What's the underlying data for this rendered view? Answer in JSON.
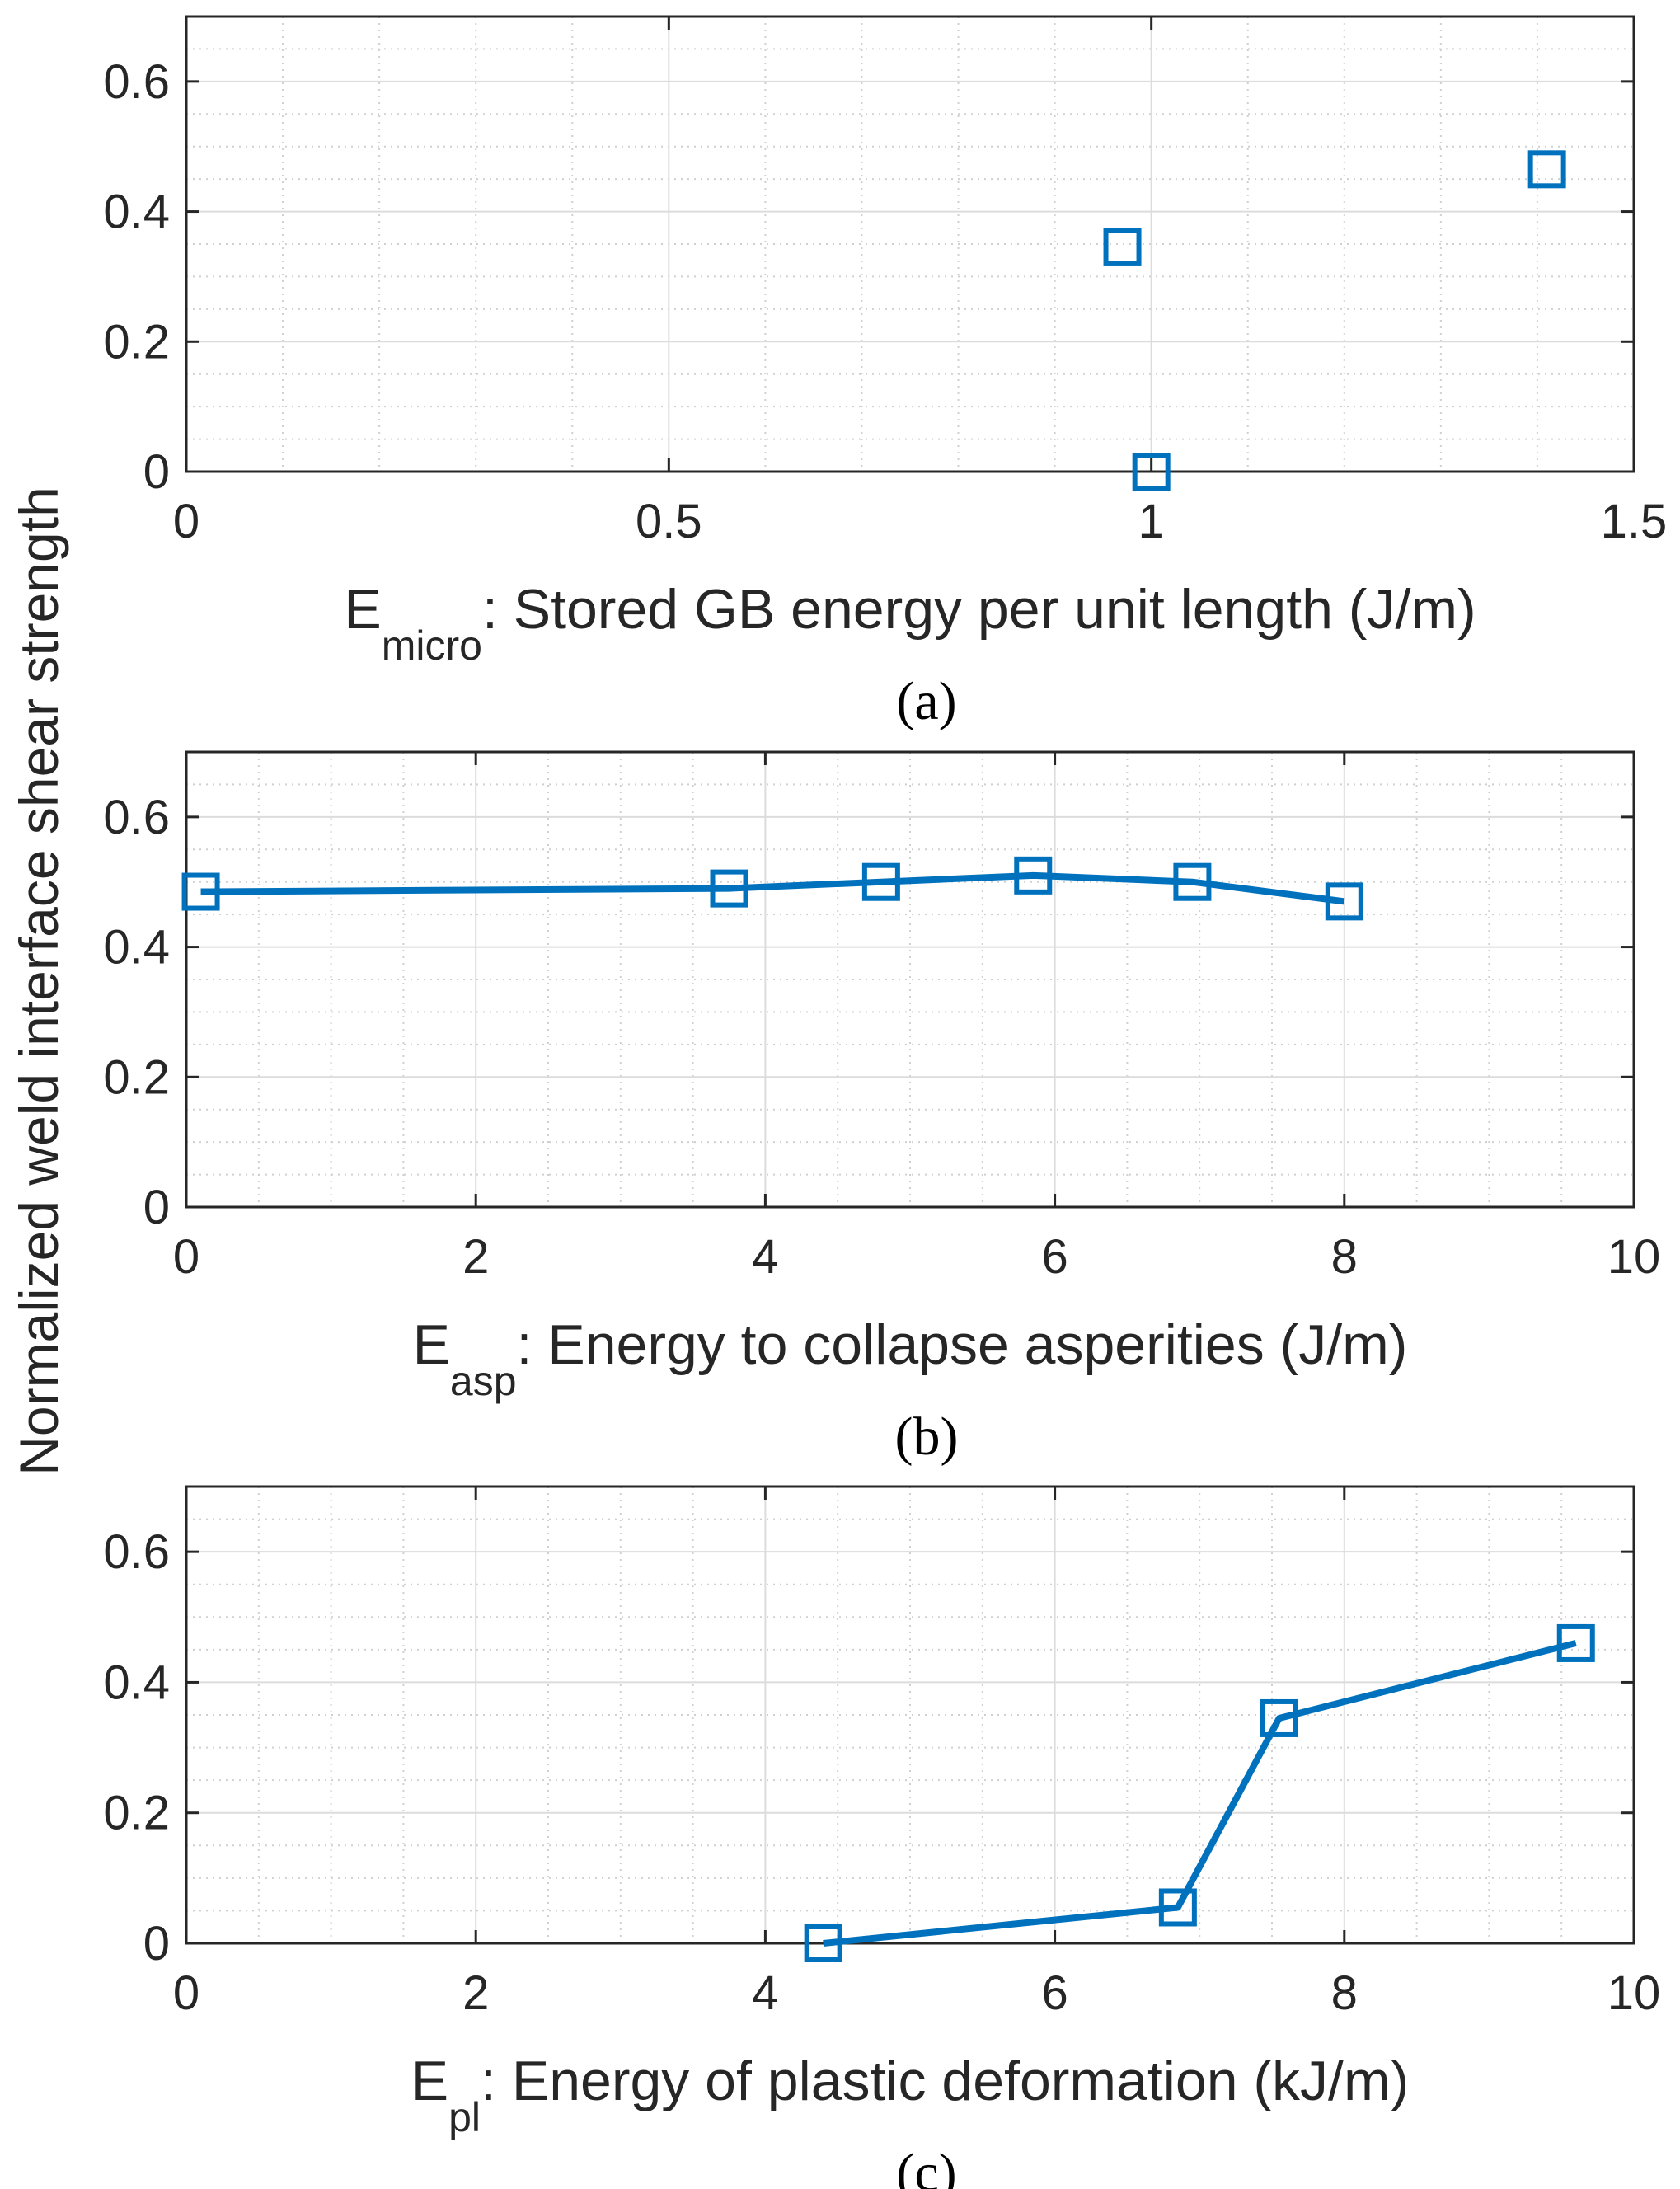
{
  "colors": {
    "series": "#0072BD",
    "axis": "#262626",
    "grid": "#dcdcdc"
  },
  "shared_ylabel": "Normalized weld interface shear strength",
  "chart_data": [
    {
      "type": "scatter",
      "caption": "(a)",
      "xlabel_main": "E",
      "xlabel_sub": "micro",
      "xlabel_rest": ": Stored GB energy per unit length (J/m)",
      "xlim": [
        0,
        1.5
      ],
      "ylim": [
        0,
        0.7
      ],
      "xticks": [
        0,
        0.5,
        1,
        1.5
      ],
      "xtick_labels": [
        "0",
        "0.5",
        "1",
        "1.5"
      ],
      "yticks": [
        0,
        0.2,
        0.4,
        0.6
      ],
      "ytick_labels": [
        "0",
        "0.2",
        "0.4",
        "0.6"
      ],
      "x_minor_step": 0.1,
      "y_minor_step": 0.05,
      "connected": false,
      "x": [
        0.97,
        1.0,
        1.41
      ],
      "y": [
        0.345,
        0.0,
        0.465
      ]
    },
    {
      "type": "line",
      "caption": "(b)",
      "xlabel_main": "E",
      "xlabel_sub": "asp",
      "xlabel_rest": ": Energy to collapse asperities (J/m)",
      "xlim": [
        0,
        10
      ],
      "ylim": [
        0,
        0.7
      ],
      "xticks": [
        0,
        2,
        4,
        6,
        8,
        10
      ],
      "xtick_labels": [
        "0",
        "2",
        "4",
        "6",
        "8",
        "10"
      ],
      "yticks": [
        0,
        0.2,
        0.4,
        0.6
      ],
      "ytick_labels": [
        "0",
        "0.2",
        "0.4",
        "0.6"
      ],
      "x_minor_step": 0.5,
      "y_minor_step": 0.05,
      "connected": true,
      "x": [
        0.1,
        3.75,
        4.8,
        5.85,
        6.95,
        8.0
      ],
      "y": [
        0.485,
        0.49,
        0.5,
        0.51,
        0.5,
        0.47
      ]
    },
    {
      "type": "line",
      "caption": "(c)",
      "xlabel_main": "E",
      "xlabel_sub": "pl",
      "xlabel_rest": ": Energy of plastic deformation (kJ/m)",
      "xlim": [
        0,
        10
      ],
      "ylim": [
        0,
        0.7
      ],
      "xticks": [
        0,
        2,
        4,
        6,
        8,
        10
      ],
      "xtick_labels": [
        "0",
        "2",
        "4",
        "6",
        "8",
        "10"
      ],
      "yticks": [
        0,
        0.2,
        0.4,
        0.6
      ],
      "ytick_labels": [
        "0",
        "0.2",
        "0.4",
        "0.6"
      ],
      "x_minor_step": 0.5,
      "y_minor_step": 0.05,
      "connected": true,
      "x": [
        4.4,
        6.85,
        7.55,
        9.6
      ],
      "y": [
        0.0,
        0.055,
        0.345,
        0.46
      ]
    }
  ]
}
